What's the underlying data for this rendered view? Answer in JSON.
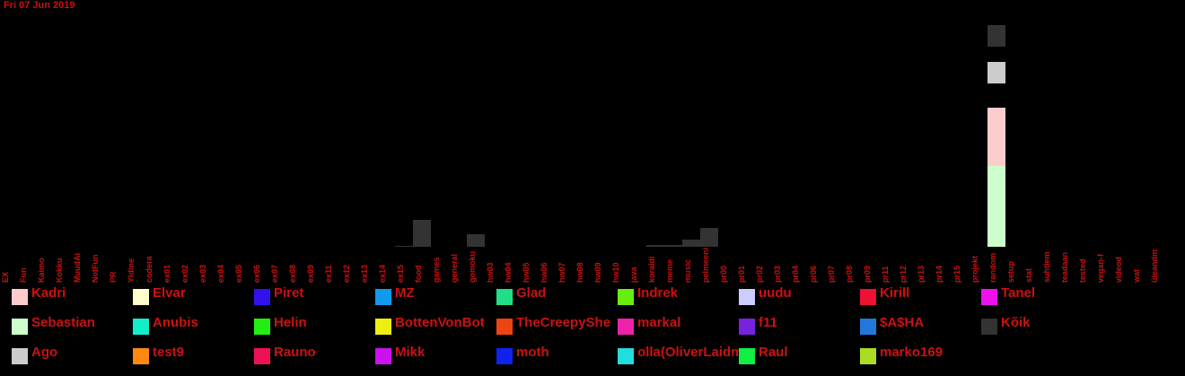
{
  "date": "Fri 07 Jun 2019",
  "chart_data": {
    "type": "bar",
    "stacked": true,
    "categories": [
      "EX",
      "Fun",
      "Kaimo",
      "Kokku",
      "MuudAi",
      "NotFun",
      "PR",
      "Yldine",
      "codera",
      "ex01",
      "ex02",
      "ex03",
      "ex04",
      "ex05",
      "ex06",
      "ex07",
      "ex08",
      "ex09",
      "ex11",
      "ex12",
      "ex13",
      "ex14",
      "ex15",
      "food",
      "games",
      "general",
      "gomoku",
      "hw03",
      "hw04",
      "hw05",
      "hw06",
      "hw07",
      "hw08",
      "hw09",
      "hw10",
      "java",
      "koraldi",
      "meme",
      "music",
      "pelmeeni",
      "pr00",
      "pr01",
      "pr02",
      "pr03",
      "pr04",
      "pr06",
      "pr07",
      "pr08",
      "pr09",
      "pr11",
      "pr12",
      "pr13",
      "pr14",
      "pr15",
      "projekt",
      "random",
      "setup",
      "stat",
      "suhtlemine",
      "teadaanded",
      "tested",
      "vegan-fun",
      "videod",
      "wat",
      "üleandmine"
    ],
    "series": [
      {
        "name": "Kadri",
        "color": "#ffcccc",
        "values": {
          "random": 65
        }
      },
      {
        "name": "Elvar",
        "color": "#ffffcc",
        "values": {}
      },
      {
        "name": "Piret",
        "color": "#3311ee",
        "values": {}
      },
      {
        "name": "MZ",
        "color": "#1199ee",
        "values": {}
      },
      {
        "name": "Glad",
        "color": "#22dd88",
        "values": {}
      },
      {
        "name": "Indrek",
        "color": "#66ee11",
        "values": {}
      },
      {
        "name": "uudu",
        "color": "#ccccff",
        "values": {}
      },
      {
        "name": "Kirill",
        "color": "#ee1133",
        "values": {}
      },
      {
        "name": "Tanel",
        "color": "#ee11ee",
        "values": {}
      },
      {
        "name": "Sebastian",
        "color": "#ccffcc",
        "values": {
          "random": 90
        }
      },
      {
        "name": "Anubis",
        "color": "#11eecc",
        "values": {}
      },
      {
        "name": "Helin",
        "color": "#22ee11",
        "values": {}
      },
      {
        "name": "BottenVonBot",
        "color": "#eeee11",
        "values": {}
      },
      {
        "name": "TheCreepyShe",
        "color": "#ee4411",
        "values": {}
      },
      {
        "name": "markal",
        "color": "#ee22aa",
        "values": {}
      },
      {
        "name": "f11",
        "color": "#7722dd",
        "values": {}
      },
      {
        "name": "$A$HA",
        "color": "#2277dd",
        "values": {}
      },
      {
        "name": "Kõik",
        "color": "#333333",
        "values": {
          "food": 30,
          "gomoku": 14,
          "koraldi": 2,
          "meme": 2,
          "music": 8,
          "pelmeeni": 21,
          "ex15": 1
        }
      },
      {
        "name": "Ago",
        "color": "#cccccc",
        "values": {
          "random": 24
        }
      },
      {
        "name": "test9",
        "color": "#ff8811",
        "values": {}
      },
      {
        "name": "Rauno",
        "color": "#ee1155",
        "values": {}
      },
      {
        "name": "Mikk",
        "color": "#cc11ee",
        "values": {}
      },
      {
        "name": "moth",
        "color": "#1122ee",
        "values": {}
      },
      {
        "name": "olla(OliverLaidma)",
        "color": "#22dddd",
        "values": {}
      },
      {
        "name": "Raul",
        "color": "#11ee44",
        "values": {}
      },
      {
        "name": "marko169",
        "color": "#aadd22",
        "values": {}
      }
    ],
    "random_top_kõik": 24,
    "ylim": [
      0,
      255
    ]
  }
}
